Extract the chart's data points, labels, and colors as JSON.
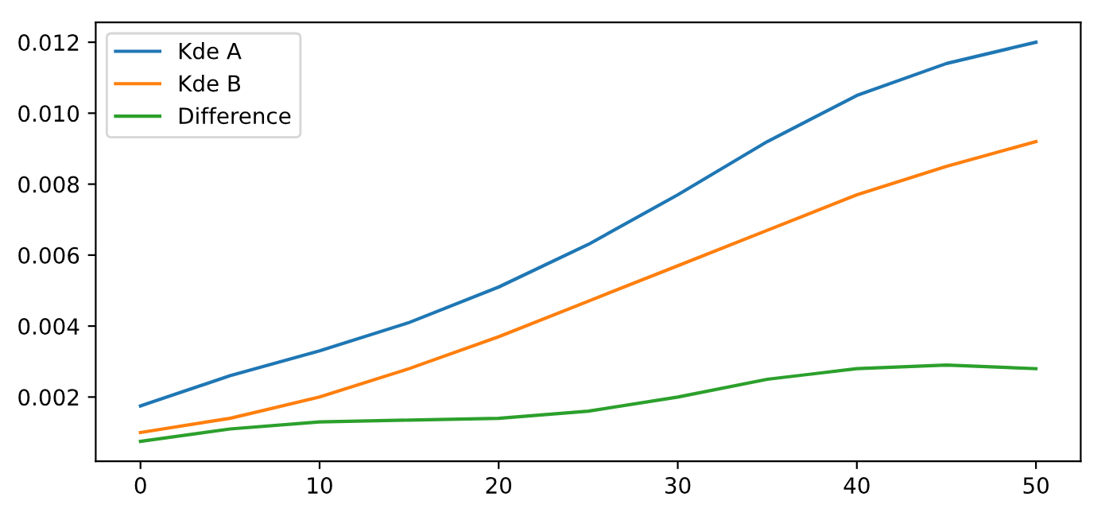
{
  "chart_data": {
    "type": "line",
    "x": [
      0,
      5,
      10,
      15,
      20,
      25,
      30,
      35,
      40,
      45,
      50
    ],
    "series": [
      {
        "name": "Kde A",
        "color": "#1f77b4",
        "values": [
          0.00175,
          0.0026,
          0.0033,
          0.0041,
          0.0051,
          0.0063,
          0.0077,
          0.0092,
          0.0105,
          0.0114,
          0.012
        ]
      },
      {
        "name": "Kde B",
        "color": "#ff7f0e",
        "values": [
          0.001,
          0.0014,
          0.002,
          0.0028,
          0.0037,
          0.0047,
          0.0057,
          0.0067,
          0.0077,
          0.0085,
          0.0092
        ]
      },
      {
        "name": "Difference",
        "color": "#2ca02c",
        "values": [
          0.00075,
          0.0011,
          0.0013,
          0.00135,
          0.0014,
          0.0016,
          0.002,
          0.0025,
          0.0028,
          0.0029,
          0.0028
        ]
      }
    ],
    "xlim": [
      -2.5,
      52.5
    ],
    "xticks": [
      0,
      10,
      20,
      30,
      40,
      50
    ],
    "ylim": [
      0.00019,
      0.01256
    ],
    "yticks": [
      {
        "value": 0.002,
        "label": "0.002"
      },
      {
        "value": 0.004,
        "label": "0.004"
      },
      {
        "value": 0.006,
        "label": "0.006"
      },
      {
        "value": 0.008,
        "label": "0.008"
      },
      {
        "value": 0.01,
        "label": "0.010"
      },
      {
        "value": 0.012,
        "label": "0.012"
      }
    ],
    "legend": "top left",
    "grid": false,
    "marker": "none",
    "line_style": "solid"
  }
}
